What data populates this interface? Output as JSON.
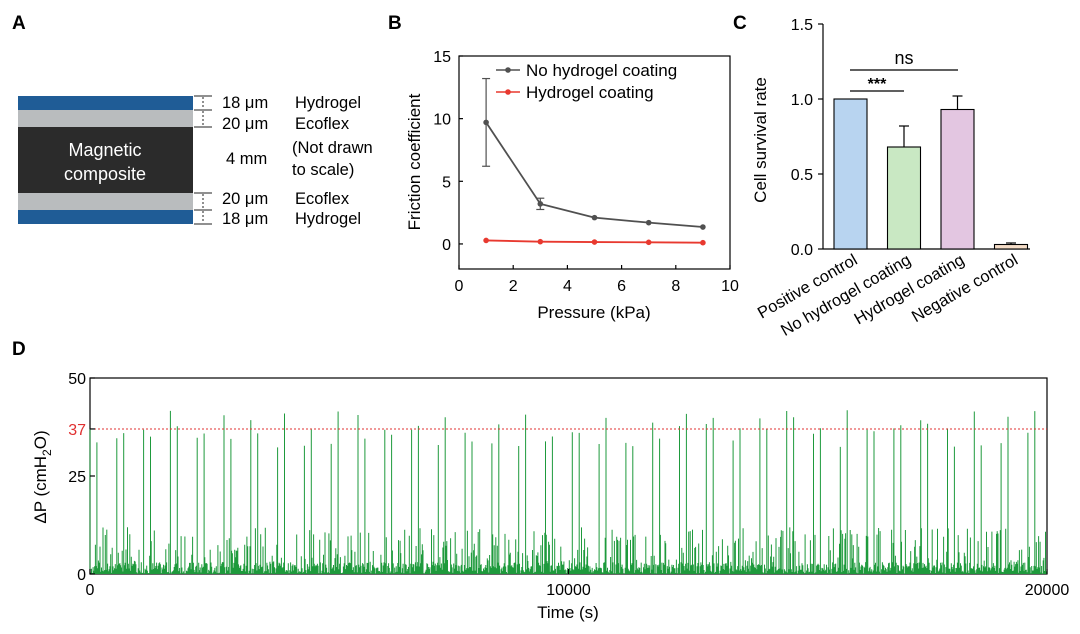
{
  "panels": {
    "a": "A",
    "b": "B",
    "c": "C",
    "d": "D"
  },
  "schematic": {
    "core_label_line1": "Magnetic",
    "core_label_line2": "composite",
    "layers": [
      {
        "thickness": "18 μm",
        "material": "Hydrogel",
        "color": "#1f5c96"
      },
      {
        "thickness": "20 μm",
        "material": "Ecoflex",
        "color": "#b9bcbe"
      },
      {
        "thickness": "4 mm",
        "material": "(Not drawn",
        "material2": "to scale)",
        "color": "#2b2b2b"
      },
      {
        "thickness": "20 μm",
        "material": "Ecoflex",
        "color": "#b9bcbe"
      },
      {
        "thickness": "18 μm",
        "material": "Hydrogel",
        "color": "#1f5c96"
      }
    ]
  },
  "chart_data": [
    {
      "panel": "B",
      "type": "line",
      "xlabel": "Pressure (kPa)",
      "ylabel": "Friction coefficient",
      "xlim": [
        0,
        10
      ],
      "ylim": [
        -2,
        15
      ],
      "xticks": [
        0,
        2,
        4,
        6,
        8,
        10
      ],
      "yticks": [
        0,
        5,
        10,
        15
      ],
      "legend_position": "top-right",
      "x": [
        1,
        3,
        5,
        7,
        9
      ],
      "series": [
        {
          "name": "No hydrogel coating",
          "color": "#505050",
          "values": [
            9.7,
            3.2,
            2.1,
            1.7,
            1.35
          ],
          "errors": [
            3.5,
            0.45,
            0.1,
            0.1,
            0.08
          ]
        },
        {
          "name": "Hydrogel coating",
          "color": "#e8392f",
          "values": [
            0.28,
            0.18,
            0.15,
            0.13,
            0.1
          ],
          "errors": [
            0.05,
            0.02,
            0.02,
            0.02,
            0.02
          ]
        }
      ],
      "grid": false
    },
    {
      "panel": "C",
      "type": "bar",
      "ylabel": "Cell survival rate",
      "ylim": [
        0,
        1.5
      ],
      "yticks": [
        0.0,
        0.5,
        1.0,
        1.5
      ],
      "categories": [
        "Positive control",
        "No hydrogel coating",
        "Hydrogel coating",
        "Negative control"
      ],
      "values": [
        1.0,
        0.68,
        0.93,
        0.03
      ],
      "errors": [
        0,
        0.14,
        0.09,
        0.01
      ],
      "colors": [
        "#b8d4f0",
        "#c9e8c3",
        "#e3c6e1",
        "#f5ddc8"
      ],
      "annotations": [
        {
          "text": "***",
          "from": "Positive control",
          "to": "No hydrogel coating"
        },
        {
          "text": "ns",
          "from": "Positive control",
          "to": "Hydrogel coating"
        }
      ],
      "grid": false
    },
    {
      "panel": "D",
      "type": "line",
      "xlabel": "Time (s)",
      "ylabel": "ΔP (cmH2O)",
      "ylabel_main": "ΔP (cmH",
      "ylabel_sub": "2",
      "ylabel_end": "O)",
      "xlim": [
        0,
        20000
      ],
      "ylim": [
        0,
        50
      ],
      "xticks": [
        0,
        10000,
        20000
      ],
      "yticks": [
        0,
        25,
        37,
        50
      ],
      "reference_line": {
        "y": 37,
        "label": "37",
        "color": "#e03030"
      },
      "series": [
        {
          "color": "#1e9a3c",
          "pattern": "periodic pressure spikes, peaks mostly ~33–44, max ~46 near 19000 s, baseline ~0–10"
        }
      ],
      "grid": false
    }
  ]
}
